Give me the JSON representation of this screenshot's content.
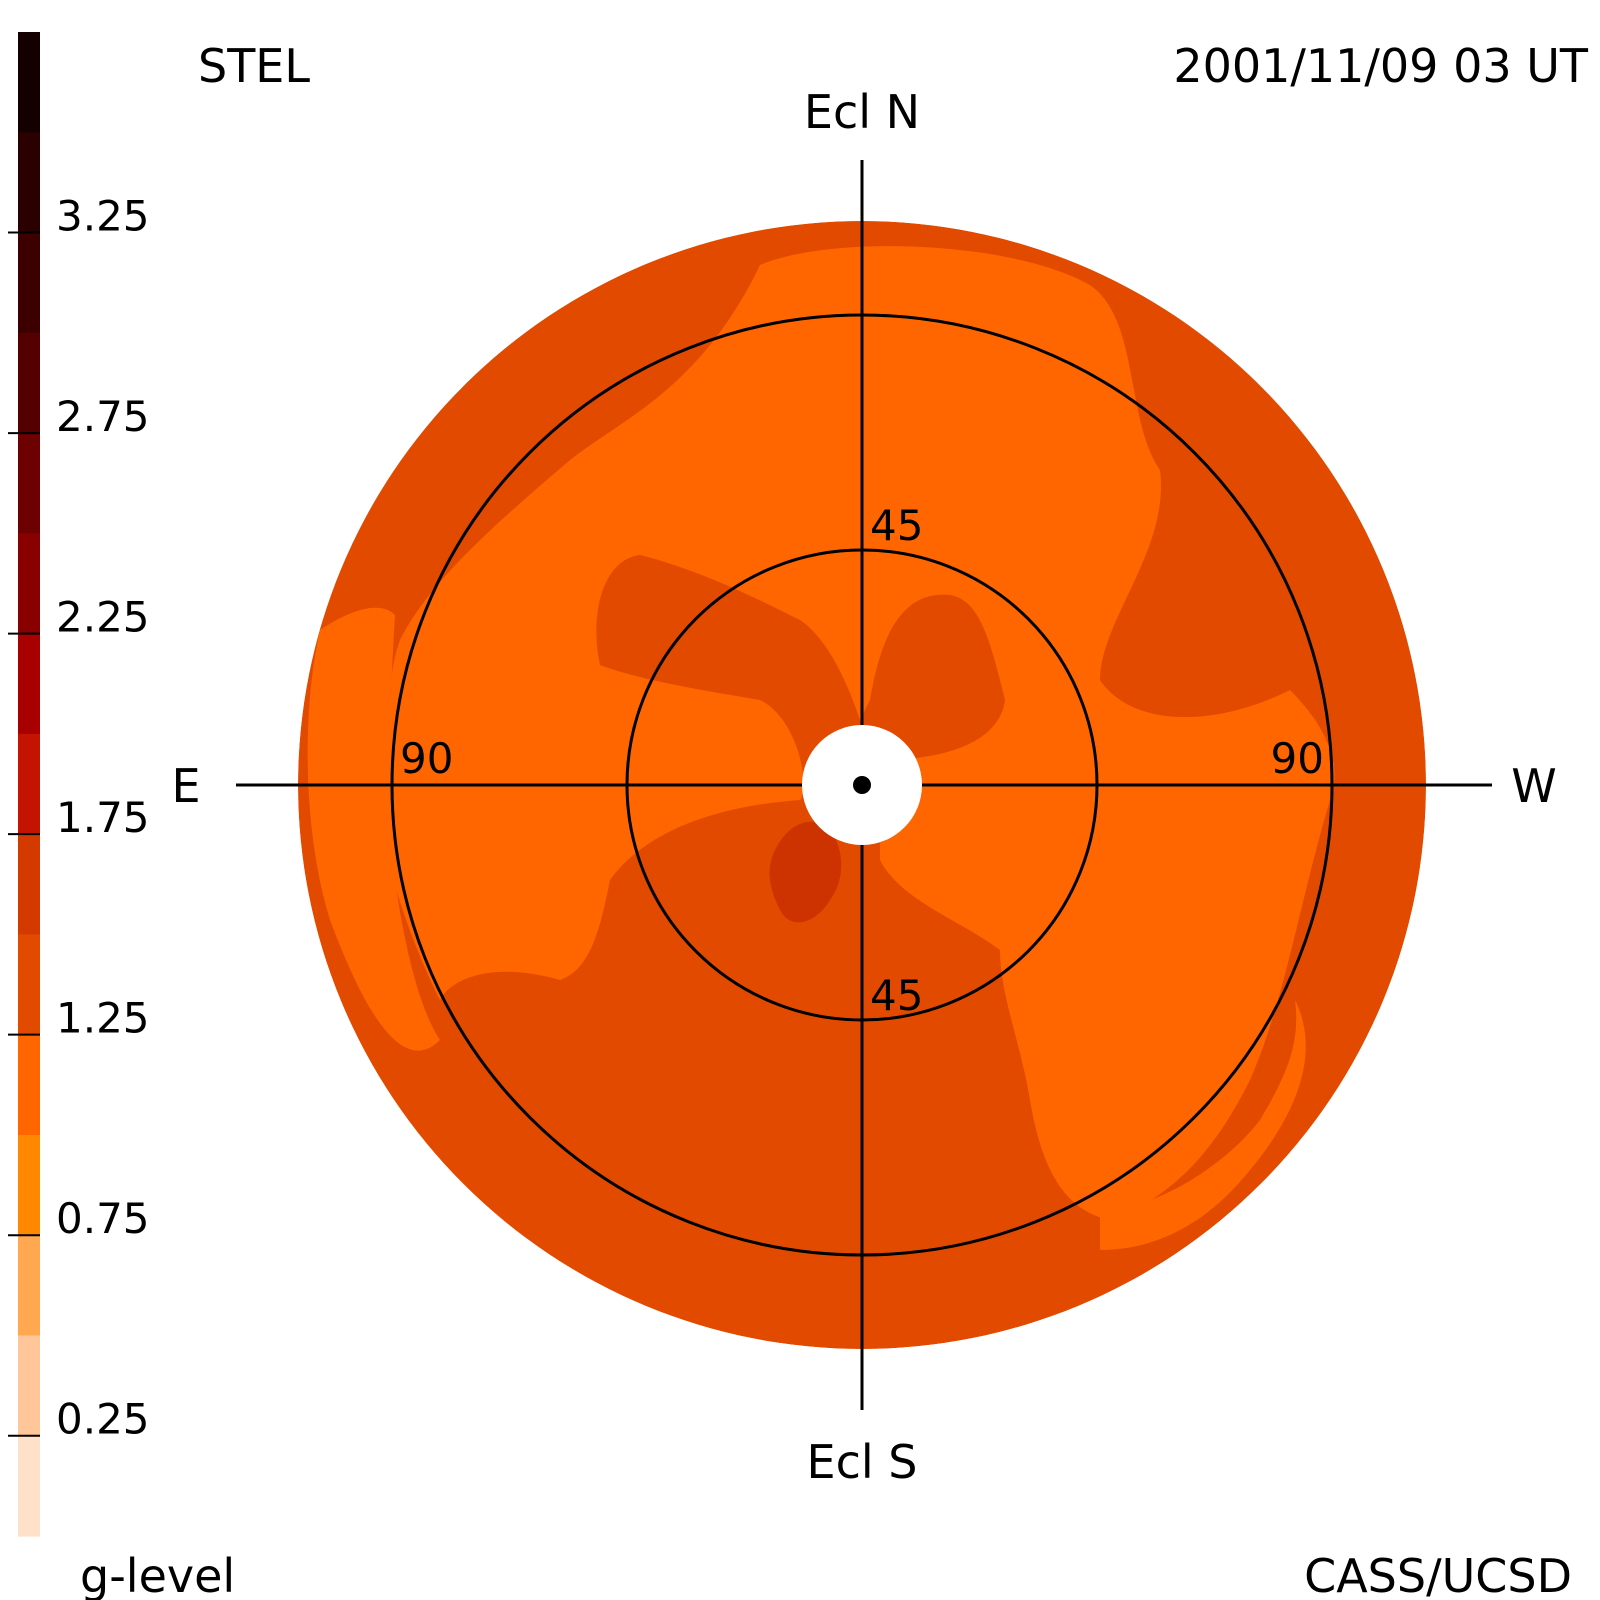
{
  "header": {
    "left": "STEL",
    "right": "2001/11/09 03 UT"
  },
  "footer": {
    "left": "g-level",
    "right": "CASS/UCSD"
  },
  "directions": {
    "north": "Ecl N",
    "south": "Ecl S",
    "east": "E",
    "west": "W"
  },
  "colors": {
    "background": "#ffffff",
    "axes": "#000000",
    "disk_dark": "#e24a00",
    "disk_light": "#ff6600",
    "blob_deep": "#cc3300",
    "sun_disk": "#ffffff"
  },
  "chart_data": {
    "type": "heatmap",
    "projection": "fisheye sky map (elongation from Sun)",
    "colorbar": {
      "label": "g-level",
      "range": [
        0,
        3.5
      ],
      "ticks": [
        "3.25",
        "2.75",
        "2.25",
        "1.75",
        "1.25",
        "0.75",
        "0.25"
      ],
      "bins": [
        {
          "range": [
            3.25,
            3.5
          ],
          "color": "#140000"
        },
        {
          "range": [
            3.0,
            3.25
          ],
          "color": "#2a0000"
        },
        {
          "range": [
            2.75,
            3.0
          ],
          "color": "#3d0000"
        },
        {
          "range": [
            2.5,
            2.75
          ],
          "color": "#550000"
        },
        {
          "range": [
            2.25,
            2.5
          ],
          "color": "#6d0000"
        },
        {
          "range": [
            2.0,
            2.25
          ],
          "color": "#880000"
        },
        {
          "range": [
            1.75,
            2.0
          ],
          "color": "#a80000"
        },
        {
          "range": [
            1.5,
            1.75
          ],
          "color": "#c41400"
        },
        {
          "range": [
            1.25,
            1.5
          ],
          "color": "#d43a00"
        },
        {
          "range": [
            1.0,
            1.25
          ],
          "color": "#e24a00"
        },
        {
          "range": [
            0.75,
            1.0
          ],
          "color": "#ff6600"
        },
        {
          "range": [
            0.5,
            0.75
          ],
          "color": "#ff8800"
        },
        {
          "range": [
            0.25,
            0.5
          ],
          "color": "#ffa850"
        },
        {
          "range": [
            0.0,
            0.25
          ],
          "color": "#ffc69a"
        },
        {
          "range": [
            -0.25,
            0.0
          ],
          "color": "#ffe0c8"
        }
      ]
    },
    "elongation_circles": [
      {
        "value": 45,
        "label": "45"
      },
      {
        "value": 90,
        "label": "90"
      }
    ],
    "max_elongation": 108,
    "ring_labels": [
      {
        "text": "45",
        "ring": 45,
        "where": "north"
      },
      {
        "text": "45",
        "ring": 45,
        "where": "south"
      },
      {
        "text": "90",
        "ring": 90,
        "where": "east"
      },
      {
        "text": "90",
        "ring": 90,
        "where": "west"
      }
    ]
  }
}
